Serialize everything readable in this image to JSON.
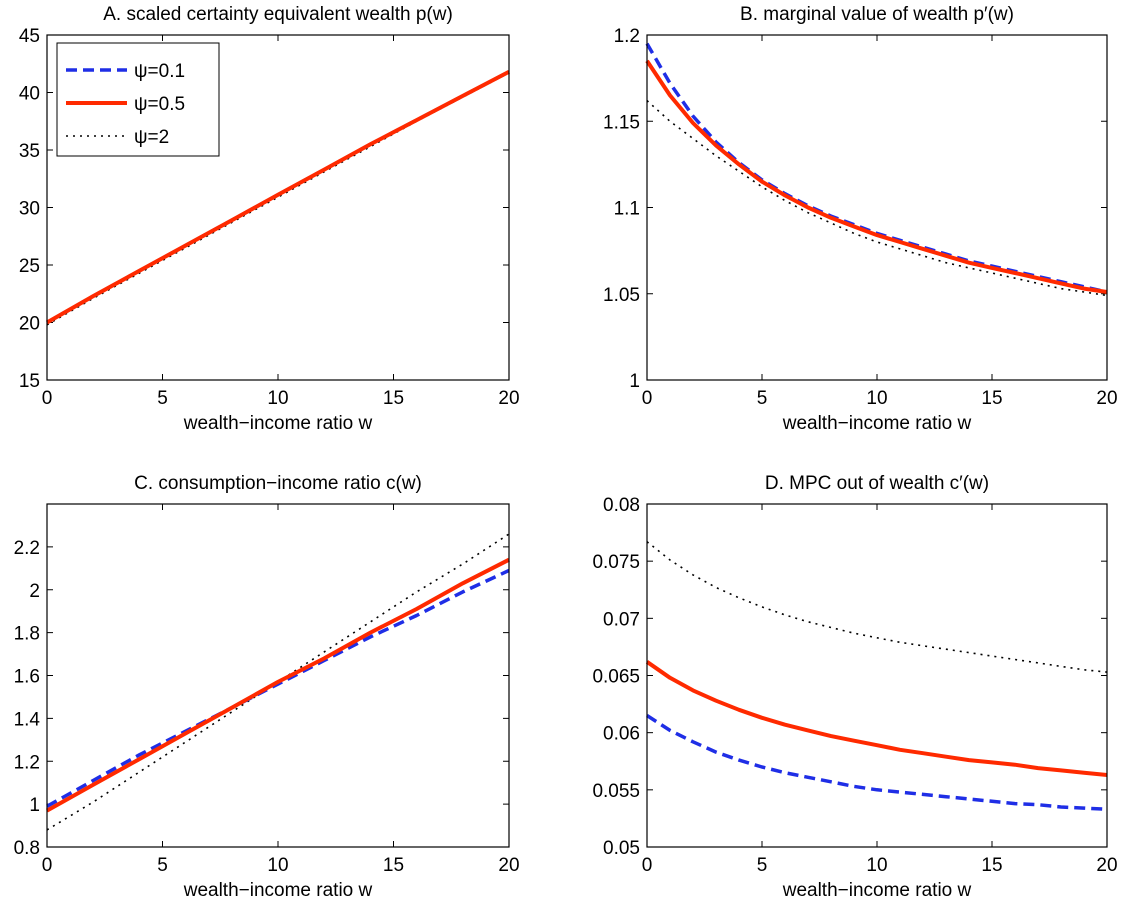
{
  "chart_data": [
    {
      "type": "line",
      "title": "A. scaled certainty equivalent wealth p(w)",
      "xlabel": "wealth−income ratio w",
      "ylabel": "",
      "xlim": [
        0,
        20
      ],
      "ylim": [
        15,
        45
      ],
      "xticks": [
        "0",
        "5",
        "10",
        "15",
        "20"
      ],
      "yticks": [
        "15",
        "20",
        "25",
        "30",
        "35",
        "40",
        "45"
      ],
      "legend_position": "top-left",
      "x": [
        0,
        2,
        4,
        6,
        8,
        10,
        12,
        14,
        16,
        18,
        20
      ],
      "series": [
        {
          "name": "ψ=0.1",
          "values": [
            20.0,
            22.3,
            24.5,
            26.7,
            28.9,
            31.1,
            33.3,
            35.5,
            37.6,
            39.7,
            41.8
          ]
        },
        {
          "name": "ψ=0.5",
          "values": [
            20.0,
            22.3,
            24.5,
            26.7,
            28.9,
            31.1,
            33.3,
            35.5,
            37.6,
            39.7,
            41.8
          ]
        },
        {
          "name": "ψ=2",
          "values": [
            19.8,
            22.1,
            24.3,
            26.5,
            28.7,
            30.9,
            33.1,
            35.3,
            37.5,
            39.6,
            41.7
          ]
        }
      ]
    },
    {
      "type": "line",
      "title": "B. marginal value of wealth p′(w)",
      "xlabel": "wealth−income ratio w",
      "ylabel": "",
      "xlim": [
        0,
        20
      ],
      "ylim": [
        1,
        1.2
      ],
      "xticks": [
        "0",
        "5",
        "10",
        "15",
        "20"
      ],
      "yticks": [
        "1",
        "1.05",
        "1.1",
        "1.15",
        "1.2"
      ],
      "x": [
        0,
        1,
        2,
        3,
        4,
        5,
        6,
        7,
        8,
        9,
        10,
        11,
        12,
        13,
        14,
        15,
        16,
        17,
        18,
        19,
        20
      ],
      "series": [
        {
          "name": "ψ=0.1",
          "values": [
            1.195,
            1.172,
            1.153,
            1.138,
            1.126,
            1.116,
            1.108,
            1.101,
            1.095,
            1.09,
            1.085,
            1.081,
            1.077,
            1.073,
            1.069,
            1.066,
            1.063,
            1.06,
            1.057,
            1.054,
            1.051
          ]
        },
        {
          "name": "ψ=0.5",
          "values": [
            1.185,
            1.165,
            1.149,
            1.136,
            1.125,
            1.115,
            1.107,
            1.1,
            1.094,
            1.089,
            1.084,
            1.08,
            1.076,
            1.072,
            1.068,
            1.065,
            1.062,
            1.059,
            1.056,
            1.053,
            1.051
          ]
        },
        {
          "name": "ψ=2",
          "values": [
            1.162,
            1.15,
            1.14,
            1.13,
            1.121,
            1.112,
            1.104,
            1.097,
            1.091,
            1.085,
            1.08,
            1.076,
            1.072,
            1.068,
            1.065,
            1.062,
            1.059,
            1.056,
            1.053,
            1.051,
            1.049
          ]
        }
      ]
    },
    {
      "type": "line",
      "title": "C. consumption−income ratio c(w)",
      "xlabel": "wealth−income ratio w",
      "ylabel": "",
      "xlim": [
        0,
        20
      ],
      "ylim": [
        0.8,
        2.4
      ],
      "xticks": [
        "0",
        "5",
        "10",
        "15",
        "20"
      ],
      "yticks": [
        "0.8",
        "1",
        "1.2",
        "1.4",
        "1.6",
        "1.8",
        "2",
        "2.2"
      ],
      "x": [
        0,
        2,
        4,
        6,
        8,
        10,
        12,
        14,
        16,
        18,
        20
      ],
      "series": [
        {
          "name": "ψ=0.1",
          "values": [
            0.99,
            1.11,
            1.23,
            1.34,
            1.45,
            1.56,
            1.67,
            1.78,
            1.88,
            1.99,
            2.09
          ]
        },
        {
          "name": "ψ=0.5",
          "values": [
            0.97,
            1.09,
            1.21,
            1.33,
            1.45,
            1.57,
            1.68,
            1.8,
            1.91,
            2.03,
            2.14
          ]
        },
        {
          "name": "ψ=2",
          "values": [
            0.88,
            1.01,
            1.15,
            1.29,
            1.43,
            1.57,
            1.71,
            1.85,
            1.99,
            2.12,
            2.26
          ]
        }
      ]
    },
    {
      "type": "line",
      "title": "D. MPC out of wealth c′(w)",
      "xlabel": "wealth−income ratio w",
      "ylabel": "",
      "xlim": [
        0,
        20
      ],
      "ylim": [
        0.05,
        0.08
      ],
      "xticks": [
        "0",
        "5",
        "10",
        "15",
        "20"
      ],
      "yticks": [
        "0.05",
        "0.055",
        "0.06",
        "0.065",
        "0.07",
        "0.075",
        "0.08"
      ],
      "x": [
        0,
        1,
        2,
        3,
        4,
        5,
        6,
        7,
        8,
        9,
        10,
        11,
        12,
        13,
        14,
        15,
        16,
        17,
        18,
        19,
        20
      ],
      "series": [
        {
          "name": "ψ=0.1",
          "values": [
            0.0615,
            0.0602,
            0.0592,
            0.0583,
            0.0576,
            0.057,
            0.0565,
            0.0561,
            0.0557,
            0.0553,
            0.055,
            0.0548,
            0.0546,
            0.0544,
            0.0542,
            0.054,
            0.0538,
            0.0537,
            0.0535,
            0.0534,
            0.0533
          ]
        },
        {
          "name": "ψ=0.5",
          "values": [
            0.0662,
            0.0648,
            0.0637,
            0.0628,
            0.062,
            0.0613,
            0.0607,
            0.0602,
            0.0597,
            0.0593,
            0.0589,
            0.0585,
            0.0582,
            0.0579,
            0.0576,
            0.0574,
            0.0572,
            0.0569,
            0.0567,
            0.0565,
            0.0563
          ]
        },
        {
          "name": "ψ=2",
          "values": [
            0.0767,
            0.0751,
            0.0738,
            0.0727,
            0.0718,
            0.071,
            0.0703,
            0.0697,
            0.0692,
            0.0687,
            0.0683,
            0.0679,
            0.0676,
            0.0673,
            0.067,
            0.0667,
            0.0664,
            0.0661,
            0.0658,
            0.0655,
            0.0653
          ]
        }
      ]
    }
  ],
  "styles": {
    "colors": {
      "psi_0_1": "#1f2ee6",
      "psi_0_5": "#ff2a00",
      "psi_2": "#000000"
    },
    "dash": {
      "psi_0_1": "dashed",
      "psi_0_5": "solid",
      "psi_2": "dotted"
    }
  }
}
